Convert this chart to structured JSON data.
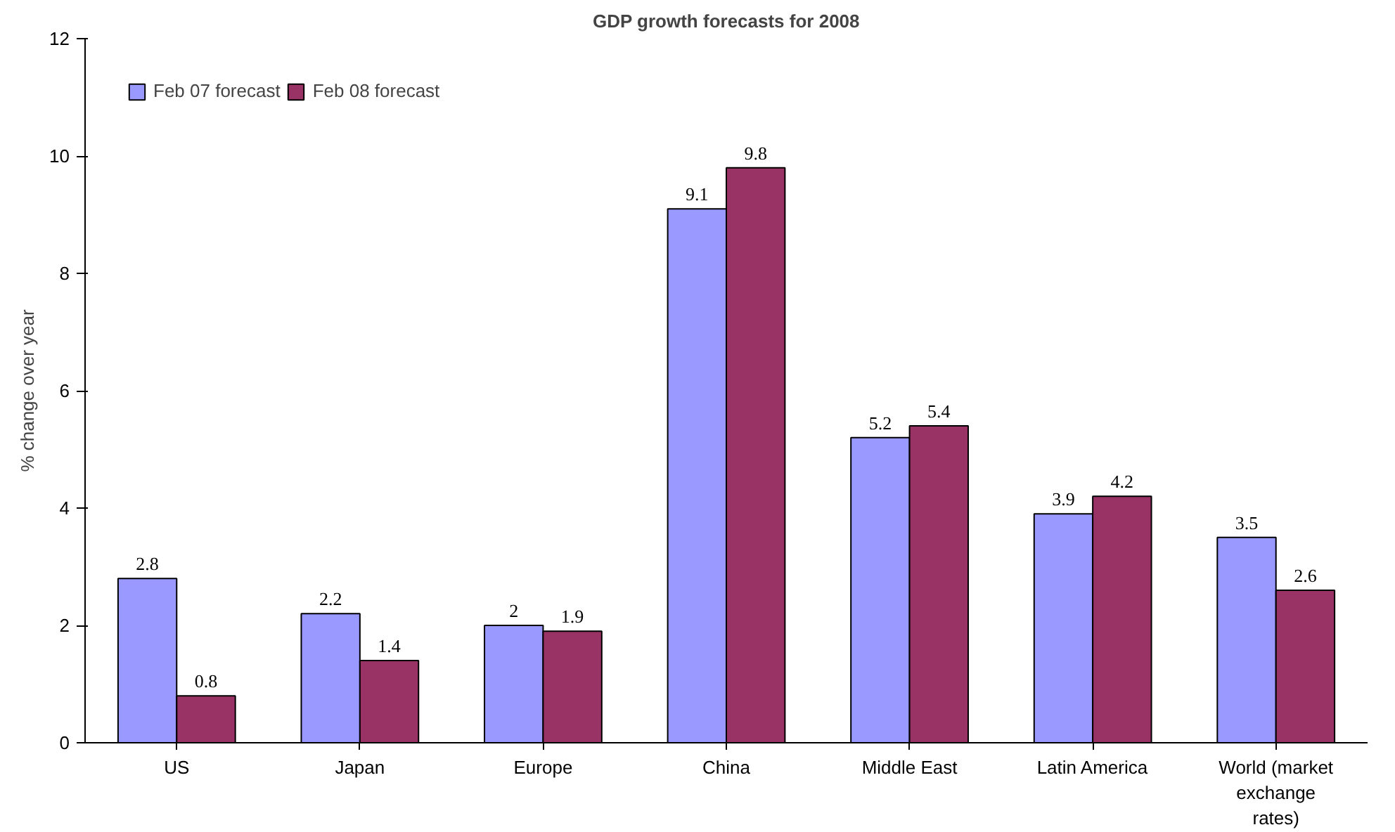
{
  "chart_data": {
    "type": "bar",
    "title": "GDP growth forecasts for 2008",
    "ylabel": "% change over year",
    "categories": [
      "US",
      "Japan",
      "Europe",
      "China",
      "Middle East",
      "Latin America",
      "World (market exchange rates)"
    ],
    "series": [
      {
        "name": "Feb 07 forecast",
        "color": "#9999ff",
        "values": [
          2.8,
          2.2,
          2,
          9.1,
          5.2,
          3.9,
          3.5
        ]
      },
      {
        "name": "Feb 08 forecast",
        "color": "#993366",
        "values": [
          0.8,
          1.4,
          1.9,
          9.8,
          5.4,
          4.2,
          2.6
        ]
      }
    ],
    "ylim": [
      0,
      12
    ],
    "yticks": [
      0,
      2,
      4,
      6,
      8,
      10,
      12
    ],
    "data_labels": true,
    "legend": "top left",
    "grid": false
  }
}
